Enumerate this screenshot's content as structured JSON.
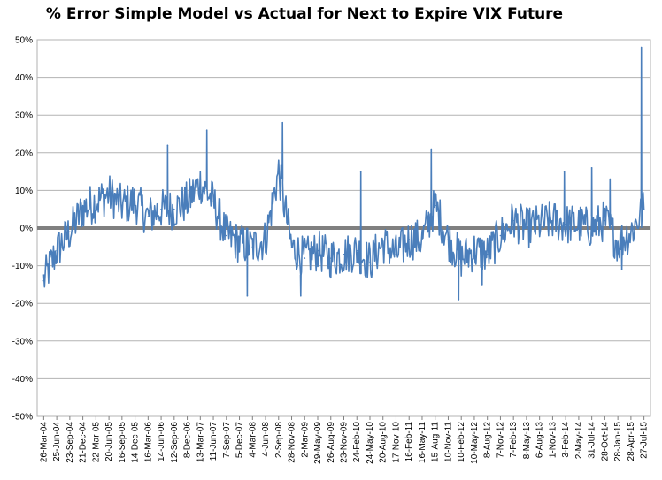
{
  "chart_data": {
    "type": "line",
    "title": "% Error Simple Model vs Actual for Next to Expire VIX Future",
    "xlabel": "",
    "ylabel": "",
    "ylim": [
      -0.5,
      0.5
    ],
    "yticks": [
      {
        "value": 0.5,
        "label": "50%"
      },
      {
        "value": 0.4,
        "label": "40%"
      },
      {
        "value": 0.3,
        "label": "30%"
      },
      {
        "value": 0.2,
        "label": "20%"
      },
      {
        "value": 0.1,
        "label": "10%"
      },
      {
        "value": 0.0,
        "label": "0%"
      },
      {
        "value": -0.1,
        "label": "-10%"
      },
      {
        "value": -0.2,
        "label": "-20%"
      },
      {
        "value": -0.3,
        "label": "-30%"
      },
      {
        "value": -0.4,
        "label": "-40%"
      },
      {
        "value": -0.5,
        "label": "-50%"
      }
    ],
    "xticks": [
      "26-Mar-04",
      "25-Jun-04",
      "23-Sep-04",
      "21-Dec-04",
      "22-Mar-05",
      "20-Jun-05",
      "16-Sep-05",
      "14-Dec-05",
      "16-Mar-06",
      "14-Jun-06",
      "12-Sep-06",
      "8-Dec-06",
      "13-Mar-07",
      "11-Jun-07",
      "7-Sep-07",
      "5-Dec-07",
      "4-Mar-08",
      "4-Jun-08",
      "2-Sep-08",
      "28-Nov-08",
      "2-Mar-09",
      "29-May-09",
      "26-Aug-09",
      "23-Nov-09",
      "24-Feb-10",
      "24-May-10",
      "20-Aug-10",
      "17-Nov-10",
      "16-Feb-11",
      "16-May-11",
      "15-Aug-11",
      "10-Nov-11",
      "10-Feb-12",
      "10-May-12",
      "8-Aug-12",
      "7-Nov-12",
      "7-Feb-13",
      "8-May-13",
      "6-Aug-13",
      "1-Nov-13",
      "3-Feb-14",
      "2-May-14",
      "31-Jul-14",
      "28-Oct-14",
      "28-Jan-15",
      "28-Apr-15",
      "27-Jul-15"
    ],
    "grid": true,
    "legend": "none",
    "series": [
      {
        "color": "#4a7ebb",
        "x": [
          0,
          1,
          2,
          3,
          4,
          5,
          6,
          7,
          8,
          9,
          10,
          11,
          12,
          13,
          14,
          15,
          16,
          17,
          18,
          19,
          20,
          21,
          22,
          23,
          24,
          25,
          26,
          27,
          28,
          29,
          30,
          31,
          32,
          33,
          34,
          35,
          36,
          37,
          38,
          39,
          40,
          41,
          42,
          43,
          44,
          45,
          46
        ],
        "y": [
          -0.14,
          -0.06,
          -0.01,
          0.05,
          0.07,
          0.09,
          0.06,
          0.07,
          0.03,
          0.05,
          0.05,
          0.07,
          0.12,
          0.07,
          -0.02,
          -0.04,
          -0.05,
          -0.03,
          0.15,
          -0.05,
          -0.08,
          -0.06,
          -0.08,
          -0.07,
          -0.06,
          -0.09,
          -0.04,
          -0.07,
          -0.03,
          -0.03,
          0.06,
          -0.03,
          -0.08,
          -0.06,
          -0.07,
          -0.02,
          0.02,
          0.0,
          0.01,
          0.02,
          0.01,
          0.01,
          0.0,
          0.02,
          -0.04,
          -0.01,
          0.05
        ],
        "spikes": [
          {
            "x": 9.5,
            "y": 0.22
          },
          {
            "x": 12.5,
            "y": 0.26
          },
          {
            "x": 15.6,
            "y": -0.18
          },
          {
            "x": 18.3,
            "y": 0.28
          },
          {
            "x": 19.7,
            "y": -0.18
          },
          {
            "x": 24.3,
            "y": 0.15
          },
          {
            "x": 29.7,
            "y": 0.21
          },
          {
            "x": 31.8,
            "y": -0.19
          },
          {
            "x": 33.6,
            "y": -0.15
          },
          {
            "x": 39.9,
            "y": 0.15
          },
          {
            "x": 42.0,
            "y": 0.16
          },
          {
            "x": 43.4,
            "y": 0.13
          },
          {
            "x": 44.3,
            "y": -0.11
          },
          {
            "x": 45.8,
            "y": 0.48
          }
        ],
        "reference_line": 0
      }
    ]
  }
}
